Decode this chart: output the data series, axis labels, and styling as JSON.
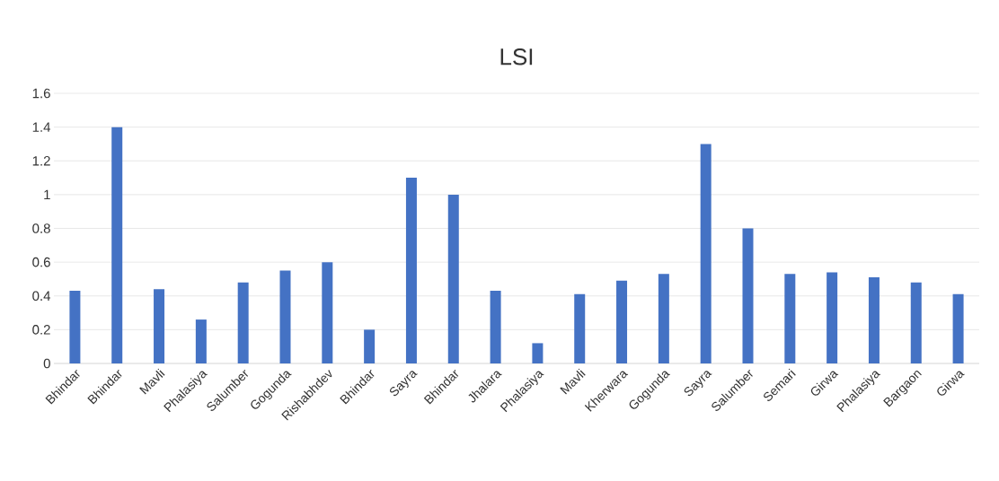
{
  "chart_data": {
    "type": "bar",
    "title": "LSI",
    "categories": [
      "Bhindar",
      "Bhindar",
      "Mavli",
      "Phalasiya",
      "Salumber",
      "Gogunda",
      "Rishabhdev",
      "Bhindar",
      "Sayra",
      "Bhindar",
      "Jhalara",
      "Phalasiya",
      "Mavli",
      "Kherwara",
      "Gogunda",
      "Sayra",
      "Salumber",
      "Semari",
      "Girwa",
      "Phalasiya",
      "Bargaon",
      "Girwa"
    ],
    "values": [
      0.43,
      1.4,
      0.44,
      0.26,
      0.48,
      0.55,
      0.6,
      0.2,
      1.1,
      1.0,
      0.43,
      0.12,
      0.41,
      0.49,
      0.53,
      1.3,
      0.8,
      0.53,
      0.54,
      0.51,
      0.48,
      0.41
    ],
    "color": "#4472c4",
    "ylim": [
      0,
      1.6
    ],
    "yticks": [
      0,
      0.2,
      0.4,
      0.6,
      0.8,
      1,
      1.2,
      1.4,
      1.6
    ],
    "grid": "y"
  }
}
